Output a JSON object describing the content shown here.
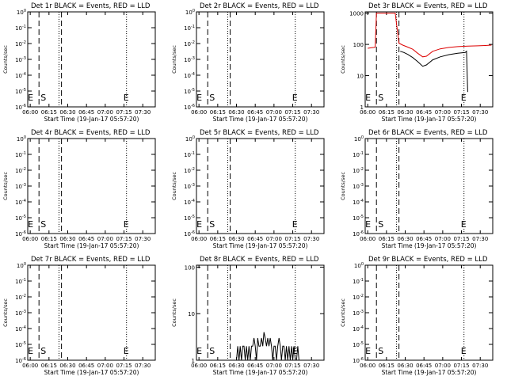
{
  "chart_data": [
    {
      "type": "line",
      "title": "Det 1r BLACK = Events, RED = LLD",
      "xlabel": "Start Time (19-Jan-17 05:57:20)",
      "ylabel": "Counts/sec",
      "x_tick_labels": [
        "06:00",
        "06:15",
        "06:30",
        "06:45",
        "07:00",
        "07:15",
        "07:30"
      ],
      "y_tick_labels": [
        "10^-6",
        "10^-5",
        "10^-4",
        "10^-3",
        "10^-2",
        "10^-1",
        "10^0"
      ],
      "y_scale": "log",
      "ylim": [
        1e-06,
        1
      ],
      "markers": {
        "E": "06:00",
        "S": "06:07",
        "E2": "07:17"
      },
      "series": []
    },
    {
      "type": "line",
      "title": "Det 2r BLACK = Events, RED = LLD",
      "xlabel": "Start Time (19-Jan-17 05:57:20)",
      "ylabel": "Counts/sec",
      "x_tick_labels": [
        "06:00",
        "06:15",
        "06:30",
        "06:45",
        "07:00",
        "07:15",
        "07:30"
      ],
      "y_tick_labels": [
        "10^-6",
        "10^-5",
        "10^-4",
        "10^-3",
        "10^-2",
        "10^-1",
        "10^0"
      ],
      "y_scale": "log",
      "ylim": [
        1e-06,
        1
      ],
      "markers": {
        "E": "06:00",
        "S": "06:07",
        "E2": "07:17"
      },
      "series": []
    },
    {
      "type": "line",
      "title": "Det 3r BLACK = Events, RED = LLD",
      "xlabel": "Start Time (19-Jan-17 05:57:20)",
      "ylabel": "Counts/sec",
      "x_tick_labels": [
        "06:00",
        "06:15",
        "06:30",
        "06:45",
        "07:00",
        "07:15",
        "07:30"
      ],
      "y_tick_labels": [
        "1",
        "10",
        "100",
        "1000"
      ],
      "y_scale": "log",
      "ylim": [
        1,
        1100
      ],
      "markers": {
        "E": "06:00",
        "S": "06:07",
        "E2": "07:17"
      },
      "series": [
        {
          "color": "#dd0000",
          "x": [
            "06:00",
            "06:03",
            "06:05",
            "06:06",
            "06:07",
            "06:09",
            "06:12",
            "06:22",
            "06:25",
            "06:28",
            "06:32",
            "06:36",
            "06:40",
            "06:44",
            "06:47",
            "06:52",
            "06:58",
            "07:05",
            "07:12",
            "07:20",
            "07:28",
            "07:34",
            "07:39"
          ],
          "y": [
            75,
            78,
            80,
            82,
            1000,
            1000,
            1000,
            1000,
            110,
            95,
            82,
            70,
            52,
            40,
            42,
            60,
            72,
            80,
            85,
            88,
            90,
            92,
            95
          ]
        },
        {
          "color": "#000000",
          "x": [
            "06:26",
            "06:29",
            "06:32",
            "06:36",
            "06:40",
            "06:44",
            "06:47",
            "06:52",
            "06:58",
            "07:05",
            "07:12",
            "07:18",
            "07:19",
            "07:20"
          ],
          "y": [
            60,
            55,
            48,
            38,
            28,
            20,
            22,
            32,
            40,
            47,
            52,
            55,
            60,
            3
          ]
        }
      ]
    },
    {
      "type": "line",
      "title": "Det 4r BLACK = Events, RED = LLD",
      "xlabel": "Start Time (19-Jan-17 05:57:20)",
      "ylabel": "Counts/sec",
      "x_tick_labels": [
        "06:00",
        "06:15",
        "06:30",
        "06:45",
        "07:00",
        "07:15",
        "07:30"
      ],
      "y_tick_labels": [
        "10^-6",
        "10^-5",
        "10^-4",
        "10^-3",
        "10^-2",
        "10^-1",
        "10^0"
      ],
      "y_scale": "log",
      "ylim": [
        1e-06,
        1
      ],
      "markers": {
        "E": "06:00",
        "S": "06:07",
        "E2": "07:17"
      },
      "series": []
    },
    {
      "type": "line",
      "title": "Det 5r BLACK = Events, RED = LLD",
      "xlabel": "Start Time (19-Jan-17 05:57:20)",
      "ylabel": "Counts/sec",
      "x_tick_labels": [
        "06:00",
        "06:15",
        "06:30",
        "06:45",
        "07:00",
        "07:15",
        "07:30"
      ],
      "y_tick_labels": [
        "10^-6",
        "10^-5",
        "10^-4",
        "10^-3",
        "10^-2",
        "10^-1",
        "10^0"
      ],
      "y_scale": "log",
      "ylim": [
        1e-06,
        1
      ],
      "markers": {
        "E": "06:00",
        "S": "06:07",
        "E2": "07:17"
      },
      "series": []
    },
    {
      "type": "line",
      "title": "Det 6r BLACK = Events, RED = LLD",
      "xlabel": "Start Time (19-Jan-17 05:57:20)",
      "ylabel": "Counts/sec",
      "x_tick_labels": [
        "06:00",
        "06:15",
        "06:30",
        "06:45",
        "07:00",
        "07:15",
        "07:30"
      ],
      "y_tick_labels": [
        "10^-6",
        "10^-5",
        "10^-4",
        "10^-3",
        "10^-2",
        "10^-1",
        "10^0"
      ],
      "y_scale": "log",
      "ylim": [
        1e-06,
        1
      ],
      "markers": {
        "E": "06:00",
        "S": "06:07",
        "E2": "07:17"
      },
      "series": []
    },
    {
      "type": "line",
      "title": "Det 7r BLACK = Events, RED = LLD",
      "xlabel": "Start Time (19-Jan-17 05:57:20)",
      "ylabel": "Counts/sec",
      "x_tick_labels": [
        "06:00",
        "06:15",
        "06:30",
        "06:45",
        "07:00",
        "07:15",
        "07:30"
      ],
      "y_tick_labels": [
        "10^-6",
        "10^-5",
        "10^-4",
        "10^-3",
        "10^-2",
        "10^-1",
        "10^0"
      ],
      "y_scale": "log",
      "ylim": [
        1e-06,
        1
      ],
      "markers": {
        "E": "06:00",
        "S": "06:07",
        "E2": "07:17"
      },
      "series": []
    },
    {
      "type": "line",
      "title": "Det 8r BLACK = Events, RED = LLD",
      "xlabel": "Start Time (19-Jan-17 05:57:20)",
      "ylabel": "Counts/sec",
      "x_tick_labels": [
        "06:00",
        "06:15",
        "06:30",
        "06:45",
        "07:00",
        "07:15",
        "07:30"
      ],
      "y_tick_labels": [
        "1",
        "10",
        "100"
      ],
      "y_scale": "log",
      "ylim": [
        1,
        110
      ],
      "markers": {
        "E": "06:00",
        "S": "06:07",
        "E2": "07:17"
      },
      "series": [
        {
          "color": "#000000",
          "x": [
            "06:30",
            "06:31",
            "06:32",
            "06:33",
            "06:34",
            "06:35",
            "06:36",
            "06:37",
            "06:38",
            "06:39",
            "06:40",
            "06:41",
            "06:42",
            "06:43",
            "06:44",
            "06:45",
            "06:46",
            "06:47",
            "06:48",
            "06:49",
            "06:50",
            "06:51",
            "06:52",
            "06:53",
            "06:54",
            "06:55",
            "06:56",
            "06:57",
            "06:58",
            "06:59",
            "07:00",
            "07:01",
            "07:02",
            "07:03",
            "07:04",
            "07:05",
            "07:06",
            "07:07",
            "07:08",
            "07:09",
            "07:10",
            "07:11",
            "07:12",
            "07:13",
            "07:14",
            "07:15",
            "07:16",
            "07:17",
            "07:18",
            "07:19",
            "07:20"
          ],
          "y": [
            1,
            2,
            1,
            2,
            1,
            2,
            2,
            1,
            2,
            1,
            2,
            1,
            2,
            2,
            3,
            2,
            1,
            3,
            2,
            2,
            3,
            2,
            4,
            3,
            2,
            3,
            2,
            3,
            2,
            1,
            2,
            2,
            1,
            2,
            3,
            2,
            1,
            2,
            2,
            1,
            2,
            1,
            2,
            1,
            2,
            1,
            2,
            1,
            1,
            2,
            1
          ]
        }
      ]
    },
    {
      "type": "line",
      "title": "Det 9r BLACK = Events, RED = LLD",
      "xlabel": "Start Time (19-Jan-17 05:57:20)",
      "ylabel": "Counts/sec",
      "x_tick_labels": [
        "06:00",
        "06:15",
        "06:30",
        "06:45",
        "07:00",
        "07:15",
        "07:30"
      ],
      "y_tick_labels": [
        "10^-6",
        "10^-5",
        "10^-4",
        "10^-3",
        "10^-2",
        "10^-1",
        "10^0"
      ],
      "y_scale": "log",
      "ylim": [
        1e-06,
        1
      ],
      "markers": {
        "E": "06:00",
        "S": "06:07",
        "E2": "07:17"
      },
      "series": []
    }
  ]
}
